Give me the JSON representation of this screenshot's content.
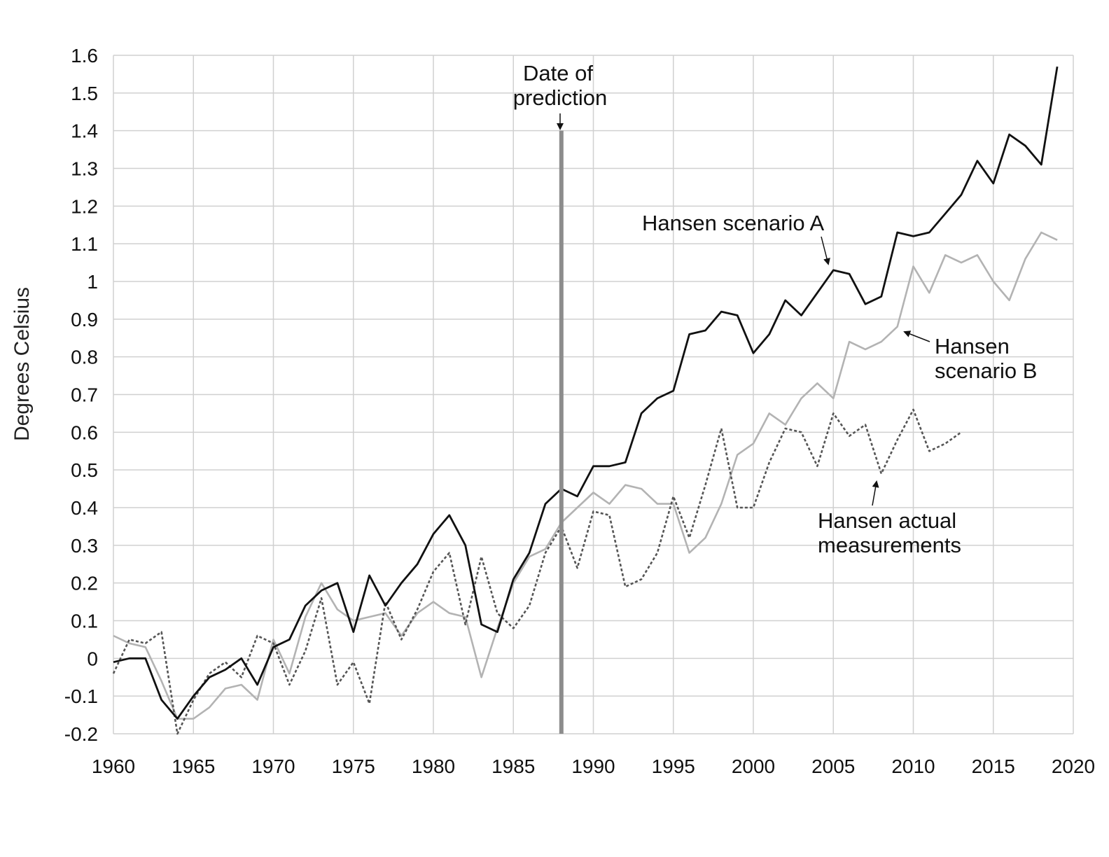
{
  "chart_data": {
    "type": "line",
    "title": "",
    "xlabel": "",
    "ylabel": "Degrees Celsius",
    "xlim": [
      1960,
      2020
    ],
    "ylim": [
      -0.2,
      1.6
    ],
    "grid": true,
    "x_ticks": [
      "1960",
      "1965",
      "1970",
      "1975",
      "1980",
      "1985",
      "1990",
      "1995",
      "2000",
      "2005",
      "2010",
      "2015",
      "2020"
    ],
    "y_ticks": [
      "1.6",
      "1.5",
      "1.4",
      "1.3",
      "1.2",
      "1.1",
      "1",
      "0.9",
      "0.8",
      "0.7",
      "0.6",
      "0.5",
      "0.4",
      "0.3",
      "0.2",
      "0.1",
      "0",
      "-0.1",
      "-0.2"
    ],
    "prediction_year": 1988,
    "annotations": {
      "prediction_line1": "Date of",
      "prediction_line2": "prediction",
      "scenario_a": "Hansen scenario A",
      "scenario_b_line1": "Hansen",
      "scenario_b_line2": "scenario B",
      "actual_line1": "Hansen actual",
      "actual_line2": "measurements"
    },
    "colors": {
      "scenario_a": "#111111",
      "scenario_b": "#b3b3b3",
      "actual": "#555555",
      "prediction_line": "#8c8c8c",
      "grid": "#d0d0d0"
    },
    "series": [
      {
        "name": "Hansen scenario A",
        "style": "solid",
        "x": [
          1960,
          1961,
          1962,
          1963,
          1964,
          1965,
          1966,
          1967,
          1968,
          1969,
          1970,
          1971,
          1972,
          1973,
          1974,
          1975,
          1976,
          1977,
          1978,
          1979,
          1980,
          1981,
          1982,
          1983,
          1984,
          1985,
          1986,
          1987,
          1988,
          1989,
          1990,
          1991,
          1992,
          1993,
          1994,
          1995,
          1996,
          1997,
          1998,
          1999,
          2000,
          2001,
          2002,
          2003,
          2004,
          2005,
          2006,
          2007,
          2008,
          2009,
          2010,
          2011,
          2012,
          2013,
          2014,
          2015,
          2016,
          2017,
          2018,
          2019
        ],
        "y": [
          -0.01,
          0.0,
          0.0,
          -0.11,
          -0.16,
          -0.1,
          -0.05,
          -0.03,
          0.0,
          -0.07,
          0.03,
          0.05,
          0.14,
          0.18,
          0.2,
          0.07,
          0.22,
          0.14,
          0.2,
          0.25,
          0.33,
          0.38,
          0.3,
          0.09,
          0.07,
          0.21,
          0.28,
          0.41,
          0.45,
          0.43,
          0.51,
          0.51,
          0.52,
          0.65,
          0.69,
          0.71,
          0.86,
          0.87,
          0.92,
          0.91,
          0.81,
          0.86,
          0.95,
          0.91,
          0.97,
          1.03,
          1.02,
          0.94,
          0.96,
          1.13,
          1.12,
          1.13,
          1.18,
          1.23,
          1.32,
          1.26,
          1.39,
          1.36,
          1.31,
          1.57
        ]
      },
      {
        "name": "Hansen scenario B",
        "style": "solid",
        "x": [
          1960,
          1961,
          1962,
          1963,
          1964,
          1965,
          1966,
          1967,
          1968,
          1969,
          1970,
          1971,
          1972,
          1973,
          1974,
          1975,
          1976,
          1977,
          1978,
          1979,
          1980,
          1981,
          1982,
          1983,
          1984,
          1985,
          1986,
          1987,
          1988,
          1989,
          1990,
          1991,
          1992,
          1993,
          1994,
          1995,
          1996,
          1997,
          1998,
          1999,
          2000,
          2001,
          2002,
          2003,
          2004,
          2005,
          2006,
          2007,
          2008,
          2009,
          2010,
          2011,
          2012,
          2013,
          2014,
          2015,
          2016,
          2017,
          2018,
          2019
        ],
        "y": [
          0.06,
          0.04,
          0.03,
          -0.06,
          -0.16,
          -0.16,
          -0.13,
          -0.08,
          -0.07,
          -0.11,
          0.05,
          -0.04,
          0.11,
          0.2,
          0.13,
          0.1,
          0.11,
          0.12,
          0.06,
          0.12,
          0.15,
          0.12,
          0.11,
          -0.05,
          0.08,
          0.2,
          0.27,
          0.29,
          0.36,
          0.4,
          0.44,
          0.41,
          0.46,
          0.45,
          0.41,
          0.41,
          0.28,
          0.32,
          0.41,
          0.54,
          0.57,
          0.65,
          0.62,
          0.69,
          0.73,
          0.69,
          0.84,
          0.82,
          0.84,
          0.88,
          1.04,
          0.97,
          1.07,
          1.05,
          1.07,
          1.0,
          0.95,
          1.06,
          1.13,
          1.11
        ]
      },
      {
        "name": "Hansen actual measurements",
        "style": "dotted",
        "x": [
          1960,
          1961,
          1962,
          1963,
          1964,
          1965,
          1966,
          1967,
          1968,
          1969,
          1970,
          1971,
          1972,
          1973,
          1974,
          1975,
          1976,
          1977,
          1978,
          1979,
          1980,
          1981,
          1982,
          1983,
          1984,
          1985,
          1986,
          1987,
          1988,
          1989,
          1990,
          1991,
          1992,
          1993,
          1994,
          1995,
          1996,
          1997,
          1998,
          1999,
          2000,
          2001,
          2002,
          2003,
          2004,
          2005,
          2006,
          2007,
          2008,
          2009,
          2010,
          2011,
          2012,
          2013
        ],
        "y": [
          -0.04,
          0.05,
          0.04,
          0.07,
          -0.2,
          -0.11,
          -0.04,
          -0.01,
          -0.05,
          0.06,
          0.04,
          -0.07,
          0.02,
          0.16,
          -0.07,
          -0.01,
          -0.12,
          0.15,
          0.05,
          0.13,
          0.23,
          0.28,
          0.09,
          0.27,
          0.12,
          0.08,
          0.14,
          0.28,
          0.35,
          0.24,
          0.39,
          0.38,
          0.19,
          0.21,
          0.28,
          0.43,
          0.32,
          0.46,
          0.61,
          0.4,
          0.4,
          0.52,
          0.61,
          0.6,
          0.51,
          0.65,
          0.59,
          0.62,
          0.49,
          0.58,
          0.66,
          0.55,
          0.57,
          0.6
        ]
      }
    ]
  }
}
